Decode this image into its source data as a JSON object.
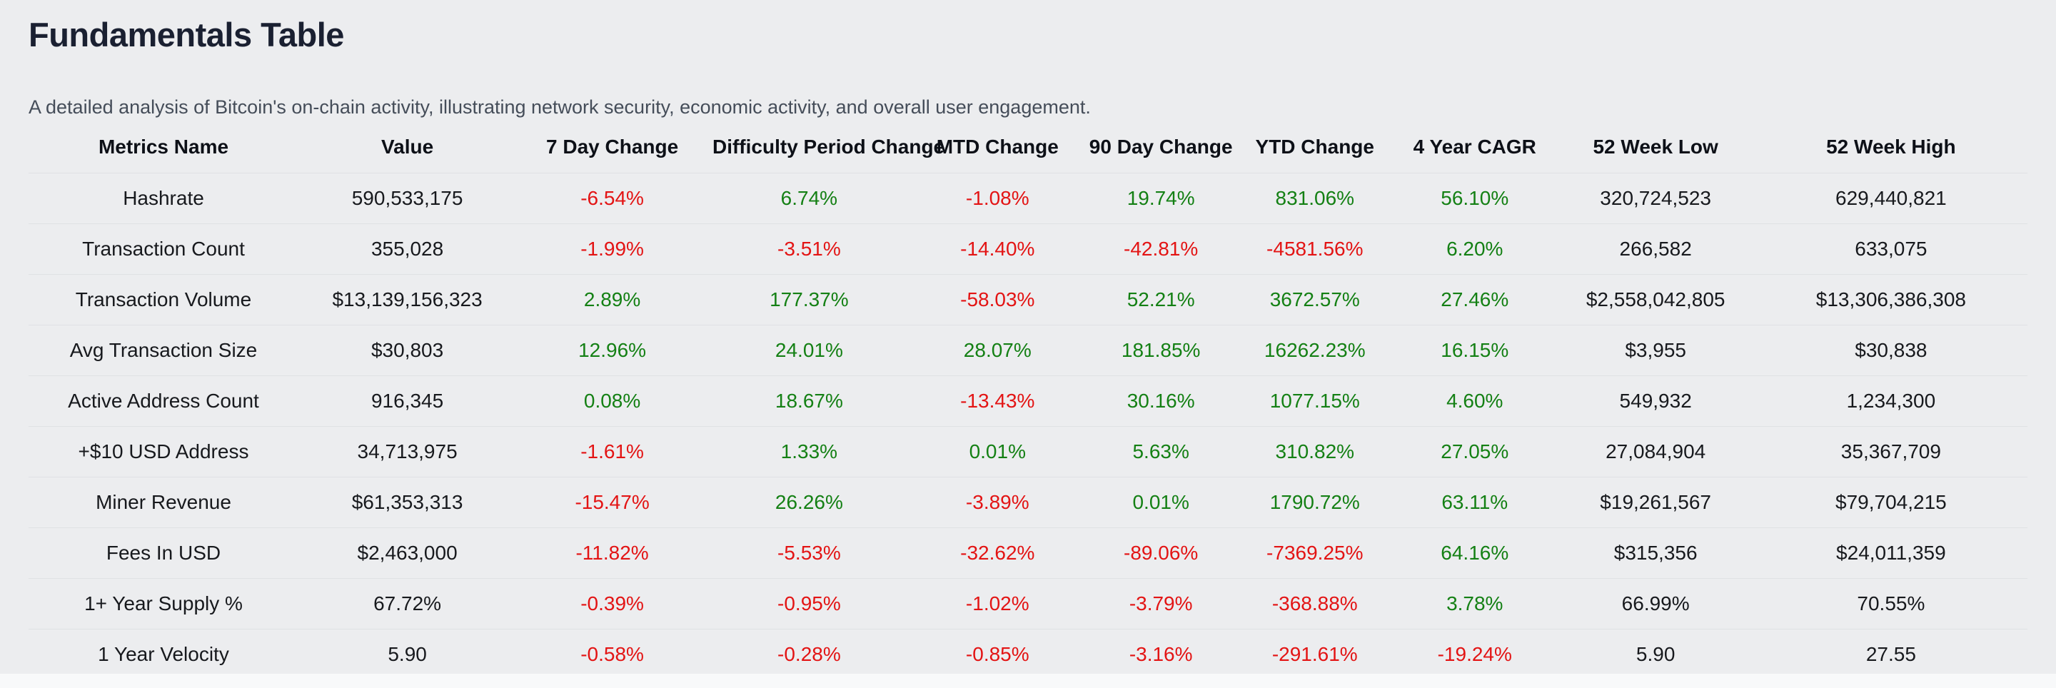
{
  "page": {
    "title": "Fundamentals Table",
    "subtitle": "A detailed analysis of Bitcoin's on-chain activity, illustrating network security, economic activity, and overall user engagement."
  },
  "colors": {
    "positive": "#148014",
    "negative": "#e31414",
    "background": "#ecedef",
    "title_text": "#1a2031",
    "subtitle_text": "#454d59",
    "cell_text": "#17191d",
    "row_divider": "#dfe1e4"
  },
  "table": {
    "columns": [
      "Metrics Name",
      "Value",
      "7 Day Change",
      "Difficulty Period Change",
      "MTD Change",
      "90 Day Change",
      "YTD Change",
      "4 Year CAGR",
      "52 Week Low",
      "52 Week High"
    ],
    "colored_columns": [
      2,
      3,
      4,
      5,
      6,
      7
    ],
    "rows": [
      [
        "Hashrate",
        "590,533,175",
        "-6.54%",
        "6.74%",
        "-1.08%",
        "19.74%",
        "831.06%",
        "56.10%",
        "320,724,523",
        "629,440,821"
      ],
      [
        "Transaction Count",
        "355,028",
        "-1.99%",
        "-3.51%",
        "-14.40%",
        "-42.81%",
        "-4581.56%",
        "6.20%",
        "266,582",
        "633,075"
      ],
      [
        "Transaction Volume",
        "$13,139,156,323",
        "2.89%",
        "177.37%",
        "-58.03%",
        "52.21%",
        "3672.57%",
        "27.46%",
        "$2,558,042,805",
        "$13,306,386,308"
      ],
      [
        "Avg Transaction Size",
        "$30,803",
        "12.96%",
        "24.01%",
        "28.07%",
        "181.85%",
        "16262.23%",
        "16.15%",
        "$3,955",
        "$30,838"
      ],
      [
        "Active Address Count",
        "916,345",
        "0.08%",
        "18.67%",
        "-13.43%",
        "30.16%",
        "1077.15%",
        "4.60%",
        "549,932",
        "1,234,300"
      ],
      [
        "+$10 USD Address",
        "34,713,975",
        "-1.61%",
        "1.33%",
        "0.01%",
        "5.63%",
        "310.82%",
        "27.05%",
        "27,084,904",
        "35,367,709"
      ],
      [
        "Miner Revenue",
        "$61,353,313",
        "-15.47%",
        "26.26%",
        "-3.89%",
        "0.01%",
        "1790.72%",
        "63.11%",
        "$19,261,567",
        "$79,704,215"
      ],
      [
        "Fees In USD",
        "$2,463,000",
        "-11.82%",
        "-5.53%",
        "-32.62%",
        "-89.06%",
        "-7369.25%",
        "64.16%",
        "$315,356",
        "$24,011,359"
      ],
      [
        "1+ Year Supply %",
        "67.72%",
        "-0.39%",
        "-0.95%",
        "-1.02%",
        "-3.79%",
        "-368.88%",
        "3.78%",
        "66.99%",
        "70.55%"
      ],
      [
        "1 Year Velocity",
        "5.90",
        "-0.58%",
        "-0.28%",
        "-0.85%",
        "-3.16%",
        "-291.61%",
        "-19.24%",
        "5.90",
        "27.55"
      ]
    ]
  }
}
